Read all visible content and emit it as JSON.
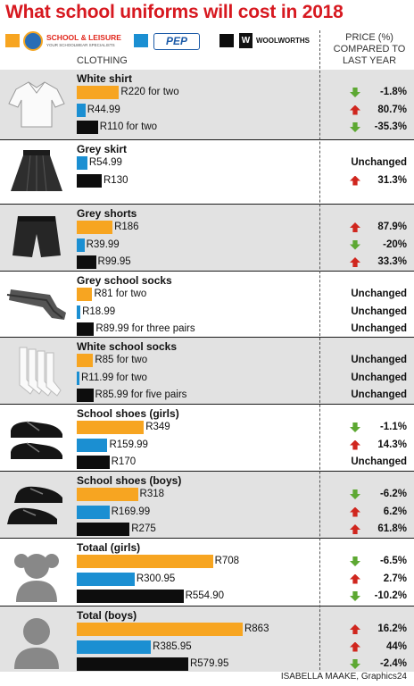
{
  "title": "What school uniforms will cost in 2018",
  "legend": {
    "stores": [
      {
        "name": "SCHOOL & LEISURE",
        "tagline": "YOUR SCHOOLWEAR SPECIALISTS",
        "color": "#f7a521"
      },
      {
        "name": "PEP",
        "color": "#1b8fd2"
      },
      {
        "name": "WOOLWORTHS",
        "color": "#0d0d0d"
      }
    ]
  },
  "clothing_label": "CLOTHING",
  "price_header": [
    "PRICE (%)",
    "COMPARED TO",
    "LAST YEAR"
  ],
  "credit": "ISABELLA MAAKE, Graphics24",
  "chart_data": {
    "type": "bar",
    "orientation": "horizontal",
    "unit": "R",
    "series_names": [
      "SCHOOL & LEISURE",
      "PEP",
      "WOOLWORTHS"
    ],
    "items": [
      {
        "name": "White shirt",
        "icon": "shirt-icon",
        "bars": [
          {
            "store": "SCHOOL & LEISURE",
            "value": 220,
            "label": "R220 for two",
            "change": "-1.8%",
            "direction": "down"
          },
          {
            "store": "PEP",
            "value": 44.99,
            "label": "R44.99",
            "change": "80.7%",
            "direction": "up"
          },
          {
            "store": "WOOLWORTHS",
            "value": 110,
            "label": "R110 for two",
            "change": "-35.3%",
            "direction": "down"
          }
        ]
      },
      {
        "name": "Grey skirt",
        "icon": "skirt-icon",
        "bars": [
          {
            "store": "PEP",
            "value": 54.99,
            "label": "R54.99",
            "change": "Unchanged",
            "direction": "none"
          },
          {
            "store": "WOOLWORTHS",
            "value": 130,
            "label": "R130",
            "change": "31.3%",
            "direction": "up"
          }
        ]
      },
      {
        "name": "Grey shorts",
        "icon": "shorts-icon",
        "bars": [
          {
            "store": "SCHOOL & LEISURE",
            "value": 186,
            "label": "R186",
            "change": "87.9%",
            "direction": "up"
          },
          {
            "store": "PEP",
            "value": 39.99,
            "label": "R39.99",
            "change": "-20%",
            "direction": "down"
          },
          {
            "store": "WOOLWORTHS",
            "value": 99.95,
            "label": "R99.95",
            "change": "33.3%",
            "direction": "up"
          }
        ]
      },
      {
        "name": "Grey school socks",
        "icon": "grey-socks-icon",
        "bars": [
          {
            "store": "SCHOOL & LEISURE",
            "value": 81,
            "label": "R81 for two",
            "change": "Unchanged",
            "direction": "none"
          },
          {
            "store": "PEP",
            "value": 18.99,
            "label": "R18.99",
            "change": "Unchanged",
            "direction": "none"
          },
          {
            "store": "WOOLWORTHS",
            "value": 89.99,
            "label": "R89.99 for three pairs",
            "change": "Unchanged",
            "direction": "none"
          }
        ]
      },
      {
        "name": "White school socks",
        "icon": "white-socks-icon",
        "bars": [
          {
            "store": "SCHOOL & LEISURE",
            "value": 85,
            "label": "R85 for two",
            "change": "Unchanged",
            "direction": "none"
          },
          {
            "store": "PEP",
            "value": 11.99,
            "label": "R11.99  for two",
            "change": "Unchanged",
            "direction": "none"
          },
          {
            "store": "WOOLWORTHS",
            "value": 85.99,
            "label": "R85.99 for five pairs",
            "change": "Unchanged",
            "direction": "none"
          }
        ]
      },
      {
        "name": "School shoes (girls)",
        "icon": "girls-shoes-icon",
        "bars": [
          {
            "store": "SCHOOL & LEISURE",
            "value": 349,
            "label": "R349",
            "change": "-1.1%",
            "direction": "down"
          },
          {
            "store": "PEP",
            "value": 159.99,
            "label": "R159.99",
            "change": "14.3%",
            "direction": "up"
          },
          {
            "store": "WOOLWORTHS",
            "value": 170,
            "label": "R170",
            "change": "Unchanged",
            "direction": "none"
          }
        ]
      },
      {
        "name": "School shoes (boys)",
        "icon": "boys-shoes-icon",
        "bars": [
          {
            "store": "SCHOOL & LEISURE",
            "value": 318,
            "label": "R318",
            "change": "-6.2%",
            "direction": "down"
          },
          {
            "store": "PEP",
            "value": 169.99,
            "label": "R169.99",
            "change": "6.2%",
            "direction": "up"
          },
          {
            "store": "WOOLWORTHS",
            "value": 275,
            "label": "R275",
            "change": "61.8%",
            "direction": "up"
          }
        ]
      },
      {
        "name": "Totaal (girls)",
        "icon": "girl-avatar-icon",
        "bars": [
          {
            "store": "SCHOOL & LEISURE",
            "value": 708,
            "label": "R708",
            "change": "-6.5%",
            "direction": "down"
          },
          {
            "store": "PEP",
            "value": 300.95,
            "label": "R300.95",
            "change": "2.7%",
            "direction": "up"
          },
          {
            "store": "WOOLWORTHS",
            "value": 554.9,
            "label": "R554.90",
            "change": "-10.2%",
            "direction": "down"
          }
        ]
      },
      {
        "name": "Total (boys)",
        "icon": "boy-avatar-icon",
        "bars": [
          {
            "store": "SCHOOL & LEISURE",
            "value": 863,
            "label": "R863",
            "change": "16.2%",
            "direction": "up"
          },
          {
            "store": "PEP",
            "value": 385.95,
            "label": "R385.95",
            "change": "44%",
            "direction": "up"
          },
          {
            "store": "WOOLWORTHS",
            "value": 579.95,
            "label": "R579.95",
            "change": "-2.4%",
            "direction": "down"
          }
        ]
      }
    ]
  }
}
